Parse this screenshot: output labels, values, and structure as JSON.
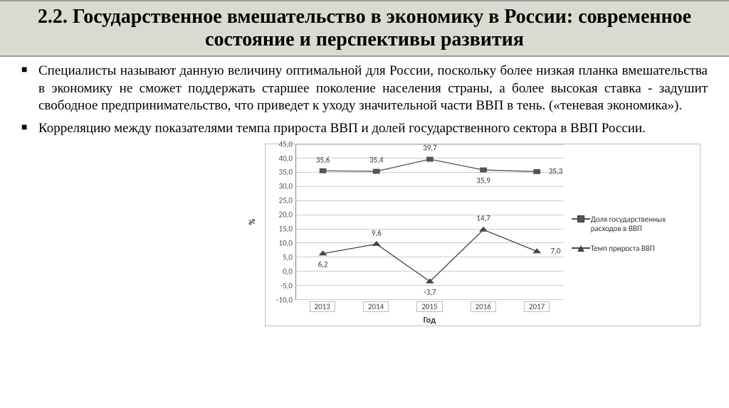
{
  "title": "2.2. Государственное вмешательство в экономику в России: современное состояние и перспективы развития",
  "bullets": [
    "Специалисты называют данную величину оптимальной для России, поскольку более низкая планка вмешательства в экономику не сможет поддержать старшее поколение населения страны, а более высокая ставка - задушит свободное предпринимательство, что приведет к уходу значительной части ВВП в тень. («теневая экономика»).",
    "Корреляцию между показателями темпа прироста ВВП и долей государственного сектора в ВВП России."
  ],
  "chart": {
    "type": "line",
    "categories": [
      "2013",
      "2014",
      "2015",
      "2016",
      "2017"
    ],
    "ylabel": "%",
    "xlabel": "Год",
    "ylim": [
      -10,
      45
    ],
    "ytick_step": 5,
    "grid_color": "#cccccc",
    "axis_color": "#888888",
    "background_color": "#ffffff",
    "label_fontsize": 11,
    "line_width": 2.5,
    "marker_size": 8,
    "series": [
      {
        "name": "Доля государственных расходов в ВВП",
        "marker": "square",
        "color": "#555555",
        "values": [
          35.6,
          35.4,
          39.7,
          35.9,
          35.3
        ],
        "label_pos": [
          "above",
          "above",
          "above",
          "below",
          "right"
        ]
      },
      {
        "name": "Темп прироста ВВП",
        "marker": "triangle",
        "color": "#444444",
        "values": [
          6.2,
          9.6,
          -3.7,
          14.7,
          7.0
        ],
        "label_pos": [
          "below",
          "above",
          "below",
          "above",
          "right"
        ]
      }
    ]
  }
}
